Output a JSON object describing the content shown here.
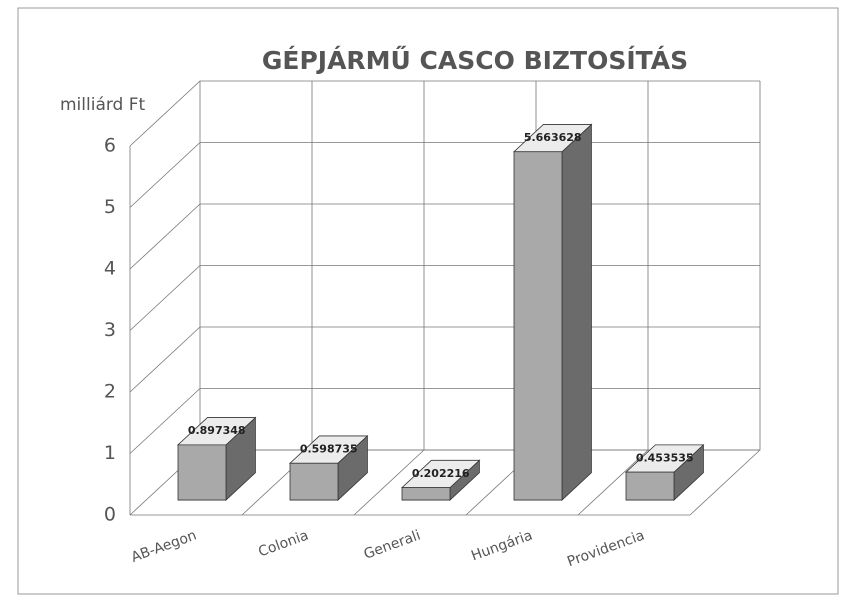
{
  "chart_data": {
    "type": "bar3d",
    "title": "GÉPJÁRMŰ CASCO BIZTOSÍTÁS",
    "y_label": "milliárd Ft",
    "categories": [
      "AB-Aegon",
      "Colonia",
      "Generali",
      "Hungária",
      "Providencia"
    ],
    "values": [
      0.897348,
      0.598735,
      0.202216,
      5.663628,
      0.453535
    ],
    "ylim": [
      0,
      6
    ],
    "yticks": [
      0,
      1,
      2,
      3,
      4,
      5,
      6
    ],
    "grid": true,
    "color": "#a9a9a9"
  }
}
